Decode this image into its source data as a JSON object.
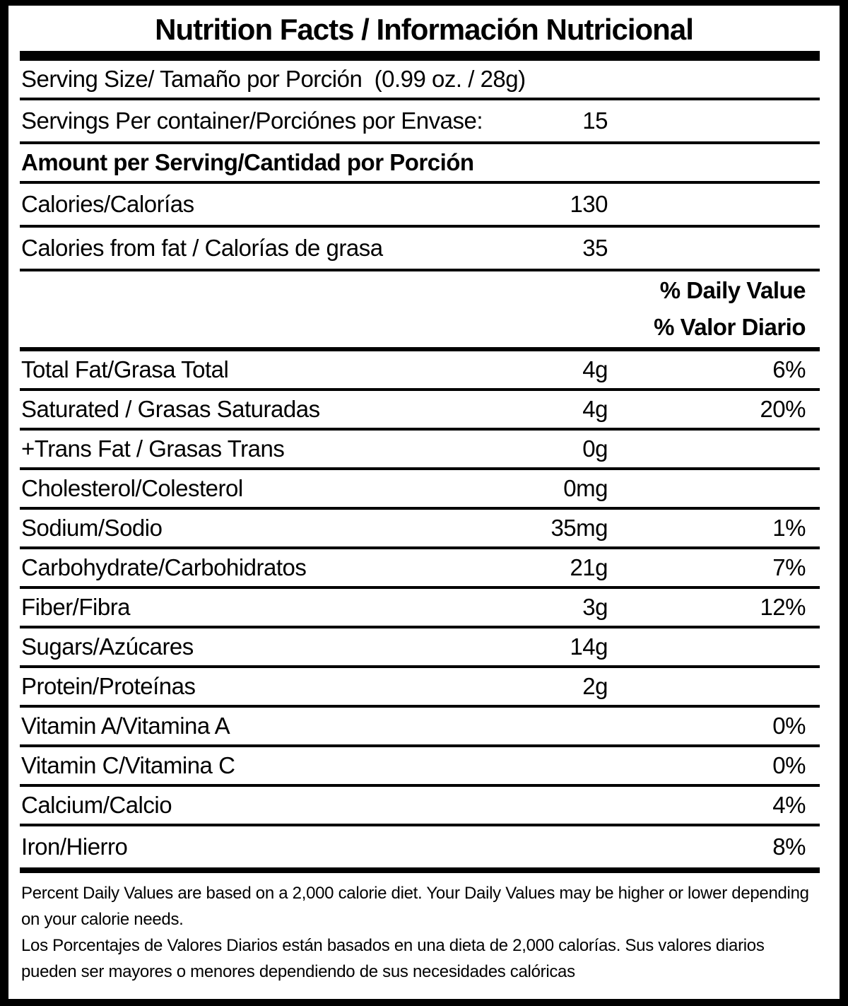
{
  "title": "Nutrition Facts / Información Nutricional",
  "serving": {
    "size_line": "Serving Size/ Tamaño por Porción  (0.99 oz. / 28g)",
    "per_container_label": "Servings Per container/Porciónes por Envase:",
    "per_container_value": "15"
  },
  "amount_heading": "Amount per Serving/Cantidad por Porción",
  "calories": [
    {
      "label": "Calories/Calorías",
      "value": "130"
    },
    {
      "label": "Calories from fat / Calorías de grasa",
      "value": "35"
    }
  ],
  "daily_value_header": [
    "% Daily Value",
    "% Valor Diario"
  ],
  "nutrients": [
    {
      "label": "Total Fat/Grasa Total",
      "value": "4g",
      "pct": "6%"
    },
    {
      "label": "Saturated / Grasas Saturadas",
      "value": "4g",
      "pct": "20%"
    },
    {
      "label": "+Trans Fat / Grasas Trans",
      "value": "0g",
      "pct": ""
    },
    {
      "label": "Cholesterol/Colesterol",
      "value": "0mg",
      "pct": ""
    },
    {
      "label": "Sodium/Sodio",
      "value": "35mg",
      "pct": "1%"
    },
    {
      "label": "Carbohydrate/Carbohidratos",
      "value": "21g",
      "pct": "7%"
    },
    {
      "label": "Fiber/Fibra",
      "value": "3g",
      "pct": "12%"
    },
    {
      "label": "Sugars/Azúcares",
      "value": "14g",
      "pct": ""
    },
    {
      "label": "Protein/Proteínas",
      "value": "2g",
      "pct": ""
    },
    {
      "label": "Vitamin A/Vitamina A",
      "value": "",
      "pct": "0%"
    },
    {
      "label": "Vitamin C/Vitamina C",
      "value": "",
      "pct": "0%"
    },
    {
      "label": "Calcium/Calcio",
      "value": "",
      "pct": "4%"
    },
    {
      "label": "Iron/Hierro",
      "value": "",
      "pct": "8%"
    }
  ],
  "footnotes": {
    "en": "Percent Daily Values are based on a 2,000 calorie diet. Your Daily Values may be higher or lower depending on your calorie needs.",
    "es": "Los Porcentajes de Valores Diarios están basados en una dieta de 2,000 calorías. Sus valores diarios pueden ser mayores o menores dependiendo de sus necesidades calóricas"
  },
  "colors": {
    "text": "#000000",
    "background": "#ffffff"
  }
}
